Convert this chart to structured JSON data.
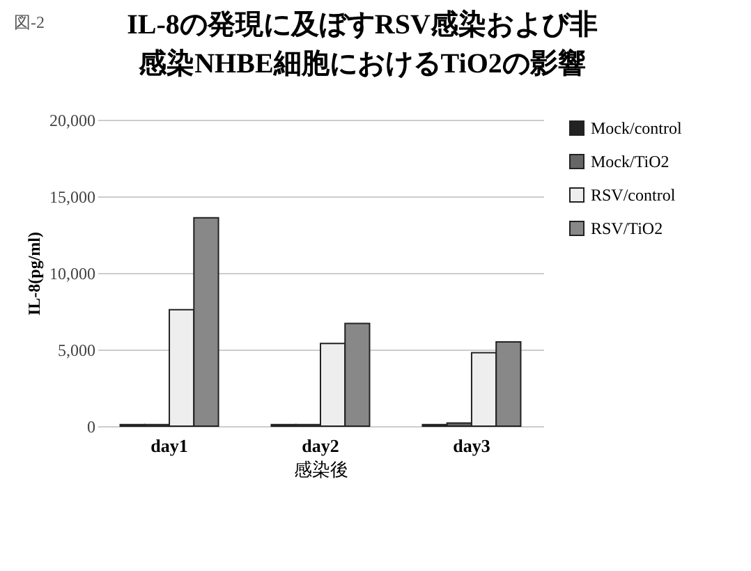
{
  "chart_data": {
    "type": "bar",
    "title": "IL-8の発現に及ぼすRSV感染および非感染NHBE細胞におけるTiO2の影響",
    "annotations": [
      "図-2"
    ],
    "xlabel": "感染後",
    "ylabel": "IL-8(pg/ml)",
    "categories": [
      "day1",
      "day2",
      "day3"
    ],
    "series": [
      {
        "name": "Mock/control",
        "color": "#222222",
        "values": [
          100,
          100,
          100
        ]
      },
      {
        "name": "Mock/TiO2",
        "color": "#666666",
        "values": [
          100,
          100,
          200
        ]
      },
      {
        "name": "RSV/control",
        "color": "#eeeeee",
        "values": [
          7600,
          5400,
          4800
        ]
      },
      {
        "name": "RSV/TiO2",
        "color": "#888888",
        "values": [
          13600,
          6700,
          5500
        ]
      }
    ],
    "ylim": [
      0,
      20000
    ],
    "yticks": [
      0,
      {
        "value": 5000,
        "label": "5,000"
      },
      {
        "value": 10000,
        "label": "10,000"
      },
      {
        "value": 15000,
        "label": "15,000"
      },
      {
        "value": 20000,
        "label": "20,000"
      }
    ],
    "grid": "y",
    "legend": "right"
  }
}
